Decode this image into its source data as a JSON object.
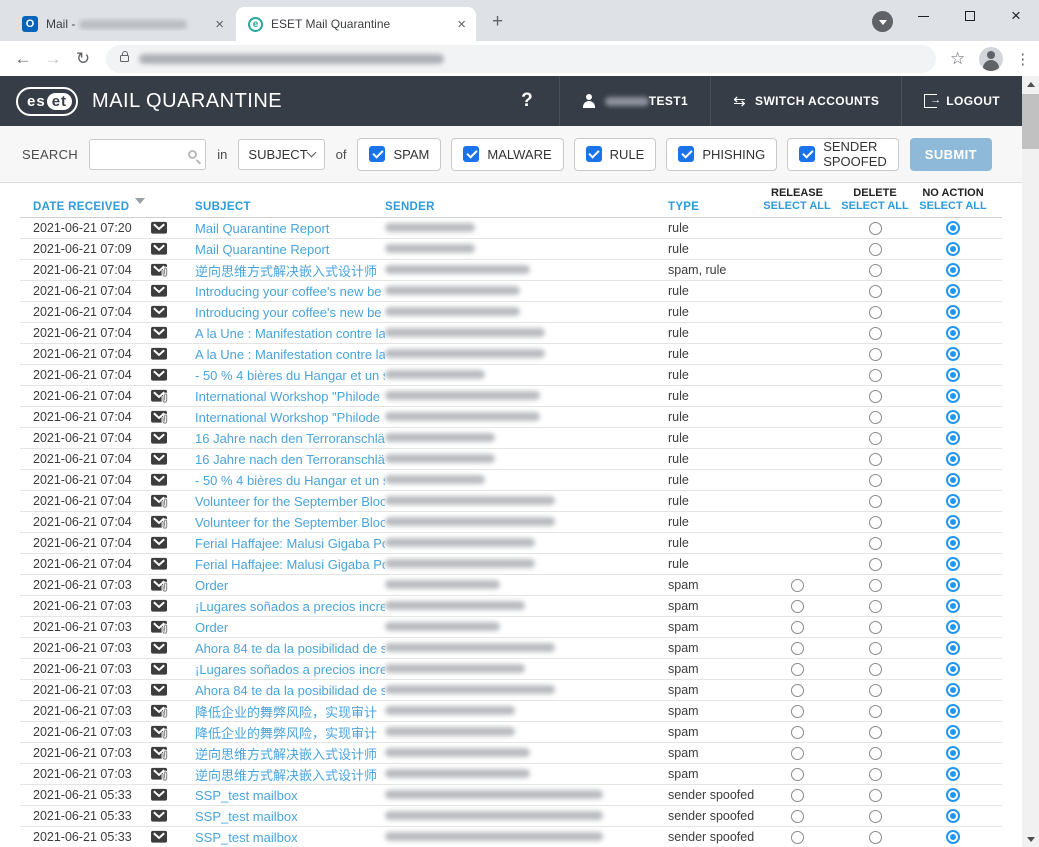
{
  "browser": {
    "tabs": [
      {
        "title": "Mail - ",
        "redacted_suffix": true,
        "icon": "outlook",
        "active": false
      },
      {
        "title": "ESET Mail Quarantine",
        "redacted_suffix": false,
        "icon": "eset",
        "active": true
      }
    ],
    "outlook_glyph": "O",
    "eset_glyph": "e",
    "close_glyph": "×",
    "new_tab_glyph": "+",
    "back_glyph": "←",
    "forward_glyph": "→",
    "reload_glyph": "↻",
    "star_glyph": "☆",
    "menu_glyph": "⋮",
    "url_redacted": true
  },
  "header": {
    "brand_left": "es",
    "brand_right": "et",
    "title": "MAIL QUARANTINE",
    "help_label": "?",
    "user_label": "TEST1",
    "switch_icon": "⇆",
    "switch_accounts_label": "SWITCH ACCOUNTS",
    "logout_label": "LOGOUT"
  },
  "search": {
    "label": "SEARCH",
    "input_value": "",
    "in_label": "in",
    "field_selected": "SUBJECT",
    "of_label": "of",
    "filters": [
      {
        "label": "SPAM",
        "checked": true
      },
      {
        "label": "MALWARE",
        "checked": true
      },
      {
        "label": "RULE",
        "checked": true
      },
      {
        "label": "PHISHING",
        "checked": true
      },
      {
        "label": "SENDER SPOOFED",
        "checked": true
      }
    ],
    "submit_label": "SUBMIT"
  },
  "table": {
    "columns": {
      "date": "DATE RECEIVED",
      "subject": "SUBJECT",
      "sender": "SENDER",
      "type": "TYPE",
      "release": "RELEASE",
      "delete": "DELETE",
      "no_action": "NO ACTION"
    },
    "select_all_label": "SELECT ALL",
    "sort_column": "date",
    "sort_direction": "desc",
    "rows": [
      {
        "date": "2021-06-21 07:20",
        "subject": "Mail Quarantine Report",
        "type": "rule",
        "attachment": false,
        "release_available": false,
        "selected": "no_action",
        "sender_redacted_width": 90
      },
      {
        "date": "2021-06-21 07:09",
        "subject": "Mail Quarantine Report",
        "type": "rule",
        "attachment": false,
        "release_available": false,
        "selected": "no_action",
        "sender_redacted_width": 90
      },
      {
        "date": "2021-06-21 07:04",
        "subject": "逆向思维方式解决嵌入式设计师",
        "type": "spam, rule",
        "attachment": true,
        "release_available": false,
        "selected": "no_action",
        "sender_redacted_width": 145
      },
      {
        "date": "2021-06-21 07:04",
        "subject": "Introducing your coffee's new be",
        "type": "rule",
        "attachment": false,
        "release_available": false,
        "selected": "no_action",
        "sender_redacted_width": 135
      },
      {
        "date": "2021-06-21 07:04",
        "subject": "Introducing your coffee's new be",
        "type": "rule",
        "attachment": false,
        "release_available": false,
        "selected": "no_action",
        "sender_redacted_width": 135
      },
      {
        "date": "2021-06-21 07:04",
        "subject": "A la Une : Manifestation contre la",
        "type": "rule",
        "attachment": false,
        "release_available": false,
        "selected": "no_action",
        "sender_redacted_width": 160
      },
      {
        "date": "2021-06-21 07:04",
        "subject": "A la Une : Manifestation contre la",
        "type": "rule",
        "attachment": false,
        "release_available": false,
        "selected": "no_action",
        "sender_redacted_width": 160
      },
      {
        "date": "2021-06-21 07:04",
        "subject": "- 50 % 4 bières du Hangar et un s",
        "type": "rule",
        "attachment": false,
        "release_available": false,
        "selected": "no_action",
        "sender_redacted_width": 100
      },
      {
        "date": "2021-06-21 07:04",
        "subject": "International Workshop \"Philode",
        "type": "rule",
        "attachment": true,
        "release_available": false,
        "selected": "no_action",
        "sender_redacted_width": 155
      },
      {
        "date": "2021-06-21 07:04",
        "subject": "International Workshop \"Philode",
        "type": "rule",
        "attachment": true,
        "release_available": false,
        "selected": "no_action",
        "sender_redacted_width": 155
      },
      {
        "date": "2021-06-21 07:04",
        "subject": "16 Jahre nach den Terroranschläg",
        "type": "rule",
        "attachment": false,
        "release_available": false,
        "selected": "no_action",
        "sender_redacted_width": 110
      },
      {
        "date": "2021-06-21 07:04",
        "subject": "16 Jahre nach den Terroranschläg",
        "type": "rule",
        "attachment": false,
        "release_available": false,
        "selected": "no_action",
        "sender_redacted_width": 110
      },
      {
        "date": "2021-06-21 07:04",
        "subject": "- 50 % 4 bières du Hangar et un s",
        "type": "rule",
        "attachment": false,
        "release_available": false,
        "selected": "no_action",
        "sender_redacted_width": 100
      },
      {
        "date": "2021-06-21 07:04",
        "subject": "Volunteer for the September Bloo",
        "type": "rule",
        "attachment": true,
        "release_available": false,
        "selected": "no_action",
        "sender_redacted_width": 170
      },
      {
        "date": "2021-06-21 07:04",
        "subject": "Volunteer for the September Bloo",
        "type": "rule",
        "attachment": true,
        "release_available": false,
        "selected": "no_action",
        "sender_redacted_width": 170
      },
      {
        "date": "2021-06-21 07:04",
        "subject": "Ferial Haffajee: Malusi Gigaba Poi",
        "type": "rule",
        "attachment": false,
        "release_available": false,
        "selected": "no_action",
        "sender_redacted_width": 150
      },
      {
        "date": "2021-06-21 07:04",
        "subject": "Ferial Haffajee: Malusi Gigaba Poi",
        "type": "rule",
        "attachment": false,
        "release_available": false,
        "selected": "no_action",
        "sender_redacted_width": 150
      },
      {
        "date": "2021-06-21 07:03",
        "subject": "Order",
        "type": "spam",
        "attachment": true,
        "release_available": true,
        "selected": "no_action",
        "sender_redacted_width": 115
      },
      {
        "date": "2021-06-21 07:03",
        "subject": "¡Lugares soñados a precios increí",
        "type": "spam",
        "attachment": false,
        "release_available": true,
        "selected": "no_action",
        "sender_redacted_width": 140
      },
      {
        "date": "2021-06-21 07:03",
        "subject": "Order",
        "type": "spam",
        "attachment": true,
        "release_available": true,
        "selected": "no_action",
        "sender_redacted_width": 115
      },
      {
        "date": "2021-06-21 07:03",
        "subject": "Ahora 84 te da la posibilidad de s",
        "type": "spam",
        "attachment": false,
        "release_available": true,
        "selected": "no_action",
        "sender_redacted_width": 170
      },
      {
        "date": "2021-06-21 07:03",
        "subject": "¡Lugares soñados a precios increí",
        "type": "spam",
        "attachment": false,
        "release_available": true,
        "selected": "no_action",
        "sender_redacted_width": 140
      },
      {
        "date": "2021-06-21 07:03",
        "subject": "Ahora 84 te da la posibilidad de s",
        "type": "spam",
        "attachment": false,
        "release_available": true,
        "selected": "no_action",
        "sender_redacted_width": 170
      },
      {
        "date": "2021-06-21 07:03",
        "subject": "降低企业的舞弊风险，实现审计",
        "type": "spam",
        "attachment": true,
        "release_available": true,
        "selected": "no_action",
        "sender_redacted_width": 130
      },
      {
        "date": "2021-06-21 07:03",
        "subject": "降低企业的舞弊风险，实现审计",
        "type": "spam",
        "attachment": true,
        "release_available": true,
        "selected": "no_action",
        "sender_redacted_width": 130
      },
      {
        "date": "2021-06-21 07:03",
        "subject": "逆向思维方式解决嵌入式设计师",
        "type": "spam",
        "attachment": true,
        "release_available": true,
        "selected": "no_action",
        "sender_redacted_width": 145
      },
      {
        "date": "2021-06-21 07:03",
        "subject": "逆向思维方式解决嵌入式设计师",
        "type": "spam",
        "attachment": true,
        "release_available": true,
        "selected": "no_action",
        "sender_redacted_width": 145
      },
      {
        "date": "2021-06-21 05:33",
        "subject": "SSP_test mailbox",
        "type": "sender spoofed",
        "attachment": false,
        "release_available": true,
        "selected": "no_action",
        "sender_redacted_width": 218
      },
      {
        "date": "2021-06-21 05:33",
        "subject": "SSP_test mailbox",
        "type": "sender spoofed",
        "attachment": false,
        "release_available": true,
        "selected": "no_action",
        "sender_redacted_width": 218
      },
      {
        "date": "2021-06-21 05:33",
        "subject": "SSP_test mailbox",
        "type": "sender spoofed",
        "attachment": false,
        "release_available": true,
        "selected": "no_action",
        "sender_redacted_width": 218
      }
    ]
  },
  "colors": {
    "header_background": "#373d47",
    "accent_blue": "#2d9cdb",
    "subject_link_blue": "#4aa4dc",
    "checkbox_blue": "#1a73e8",
    "radio_selected_blue": "#2196f3",
    "submit_button": "#8fb9d9",
    "chrome_strip": "#dee1e6"
  }
}
